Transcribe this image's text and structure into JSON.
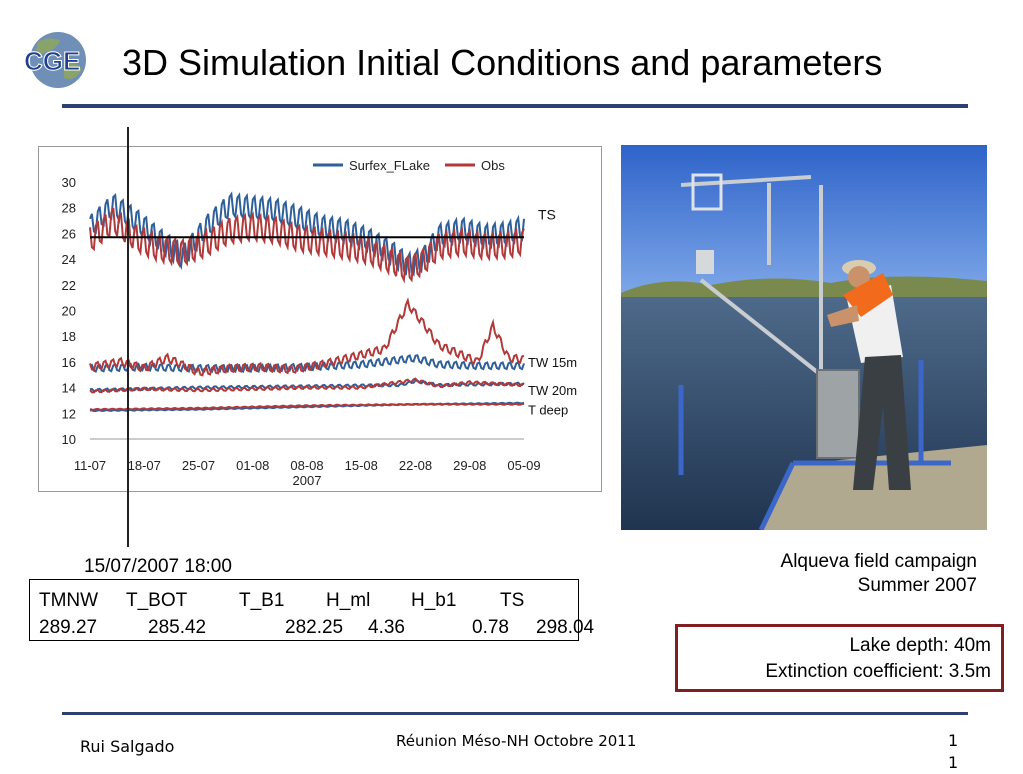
{
  "slide": {
    "title": "3D Simulation Initial Conditions and parameters",
    "logo_text": "CGE",
    "date_label": "15/07/2007 18:00",
    "params": {
      "headers": [
        "TMNW",
        "T_BOT",
        "T_B1",
        "H_ml",
        "H_b1",
        "TS"
      ],
      "values": [
        "289.27",
        "285.42",
        "282.25",
        "4.36",
        "0.78",
        "298.04"
      ]
    },
    "caption": {
      "line1": "Alqueva field campaign",
      "line2": "Summer 2007"
    },
    "info": {
      "line1": "Lake depth: 40m",
      "line2": "Extinction coefficient: 3.5m"
    },
    "footer": {
      "author": "Rui Salgado",
      "event": "Réunion Méso-NH Octobre 2011",
      "page": "11"
    },
    "colors": {
      "accent": "#2f3f6f",
      "box_border": "#7f1f1f",
      "model": "#2e5f98",
      "obs": "#b03a3a"
    }
  },
  "chart_data": {
    "type": "line",
    "legend_position": "top-right",
    "x_tick_labels": [
      "11-07",
      "18-07",
      "25-07",
      "01-08",
      "08-08",
      "15-08",
      "22-08",
      "29-08",
      "05-09"
    ],
    "x_sub_label": "2007",
    "x_range": [
      0,
      56
    ],
    "ylim": [
      10,
      30
    ],
    "y_ticks": [
      10,
      12,
      14,
      16,
      18,
      20,
      22,
      24,
      26,
      28,
      30
    ],
    "series": [
      {
        "name": "Surfex_FLake",
        "color": "#2e5f98"
      },
      {
        "name": "Obs",
        "color": "#b03a3a"
      }
    ],
    "reference_line": {
      "y": 25.7,
      "label": "TS"
    },
    "depth_labels": [
      {
        "label": "TW 15m",
        "y": 16
      },
      {
        "label": "TW 20m",
        "y": 13.8
      },
      {
        "label": "T deep",
        "y": 12.3
      }
    ],
    "levels": [
      {
        "label": "TS",
        "model": [
          [
            0,
            26.5
          ],
          [
            3,
            28.2
          ],
          [
            6,
            27.0
          ],
          [
            9,
            25.5
          ],
          [
            12,
            24.2
          ],
          [
            15,
            26.5
          ],
          [
            18,
            28.2
          ],
          [
            21,
            28.0
          ],
          [
            24,
            27.8
          ],
          [
            27,
            27.2
          ],
          [
            30,
            26.5
          ],
          [
            33,
            26.2
          ],
          [
            36,
            25.5
          ],
          [
            39,
            24.5
          ],
          [
            41,
            23.5
          ],
          [
            43,
            24.0
          ],
          [
            45,
            25.8
          ],
          [
            48,
            26.3
          ],
          [
            51,
            25.8
          ],
          [
            54,
            26.0
          ],
          [
            56,
            26.5
          ]
        ],
        "obs": [
          [
            0,
            25.5
          ],
          [
            3,
            27.0
          ],
          [
            6,
            25.6
          ],
          [
            9,
            24.8
          ],
          [
            12,
            24.5
          ],
          [
            15,
            25.2
          ],
          [
            18,
            26.2
          ],
          [
            21,
            26.5
          ],
          [
            24,
            26.2
          ],
          [
            27,
            25.6
          ],
          [
            30,
            25.3
          ],
          [
            33,
            25.0
          ],
          [
            36,
            24.6
          ],
          [
            39,
            23.8
          ],
          [
            41,
            23.2
          ],
          [
            43,
            23.8
          ],
          [
            45,
            25.0
          ],
          [
            48,
            25.3
          ],
          [
            51,
            25.0
          ],
          [
            54,
            25.1
          ],
          [
            56,
            25.4
          ]
        ]
      },
      {
        "label": "TW 15m",
        "model": [
          [
            0,
            15.5
          ],
          [
            7,
            15.6
          ],
          [
            14,
            15.5
          ],
          [
            21,
            15.5
          ],
          [
            28,
            15.6
          ],
          [
            35,
            15.8
          ],
          [
            42,
            16.3
          ],
          [
            45,
            15.8
          ],
          [
            50,
            15.7
          ],
          [
            56,
            15.7
          ]
        ],
        "obs": [
          [
            0,
            15.6
          ],
          [
            4,
            16.0
          ],
          [
            7,
            15.5
          ],
          [
            10,
            16.3
          ],
          [
            14,
            15.2
          ],
          [
            18,
            15.5
          ],
          [
            22,
            15.6
          ],
          [
            26,
            15.4
          ],
          [
            30,
            15.8
          ],
          [
            34,
            16.4
          ],
          [
            38,
            17.0
          ],
          [
            41,
            20.5
          ],
          [
            43,
            19.0
          ],
          [
            45,
            17.3
          ],
          [
            47,
            16.8
          ],
          [
            50,
            16.0
          ],
          [
            52,
            18.8
          ],
          [
            54,
            16.3
          ],
          [
            56,
            16.2
          ]
        ]
      },
      {
        "label": "TW 20m",
        "model": [
          [
            0,
            13.8
          ],
          [
            14,
            14.0
          ],
          [
            28,
            14.1
          ],
          [
            40,
            14.2
          ],
          [
            42,
            14.5
          ],
          [
            45,
            14.2
          ],
          [
            56,
            14.3
          ]
        ],
        "obs": [
          [
            0,
            13.7
          ],
          [
            7,
            13.9
          ],
          [
            14,
            13.8
          ],
          [
            21,
            13.9
          ],
          [
            28,
            14.0
          ],
          [
            35,
            14.0
          ],
          [
            42,
            14.6
          ],
          [
            45,
            14.1
          ],
          [
            49,
            14.4
          ],
          [
            56,
            14.2
          ]
        ]
      },
      {
        "label": "T deep",
        "model": [
          [
            0,
            12.2
          ],
          [
            14,
            12.3
          ],
          [
            28,
            12.5
          ],
          [
            42,
            12.7
          ],
          [
            56,
            12.8
          ]
        ],
        "obs": [
          [
            0,
            12.3
          ],
          [
            14,
            12.4
          ],
          [
            28,
            12.6
          ],
          [
            42,
            12.7
          ],
          [
            56,
            12.7
          ]
        ]
      }
    ]
  }
}
